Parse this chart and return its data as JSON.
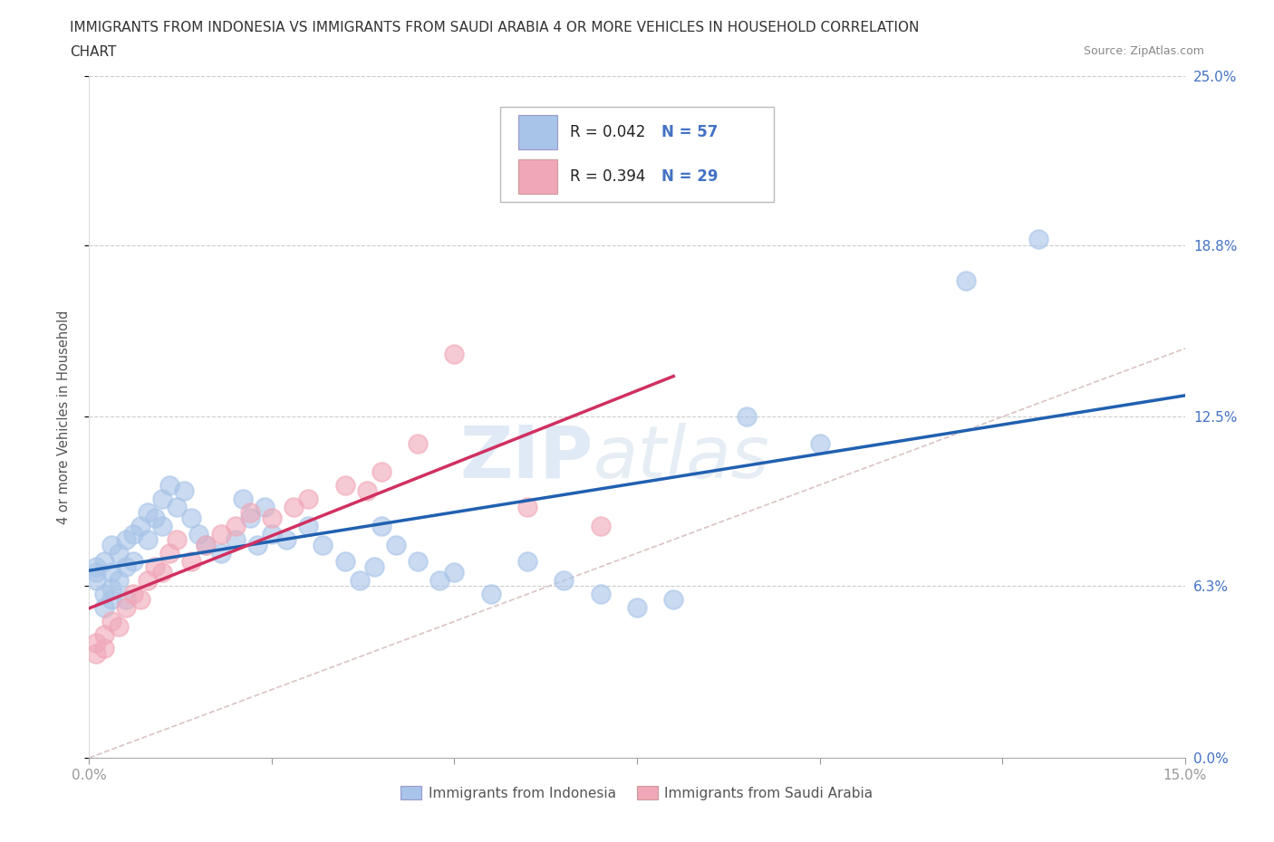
{
  "title_line1": "IMMIGRANTS FROM INDONESIA VS IMMIGRANTS FROM SAUDI ARABIA 4 OR MORE VEHICLES IN HOUSEHOLD CORRELATION",
  "title_line2": "CHART",
  "source": "Source: ZipAtlas.com",
  "ylabel": "4 or more Vehicles in Household",
  "xlim": [
    0.0,
    0.15
  ],
  "ylim": [
    0.0,
    0.25
  ],
  "ytick_positions": [
    0.0,
    0.063,
    0.125,
    0.188,
    0.25
  ],
  "ytick_labels_right": [
    "0.0%",
    "6.3%",
    "12.5%",
    "18.8%",
    "25.0%"
  ],
  "R_indonesia": 0.042,
  "N_indonesia": 57,
  "R_saudi": 0.394,
  "N_saudi": 29,
  "color_indonesia": "#a8c4e8",
  "color_saudi": "#f0a8b8",
  "line_color_indonesia": "#2060b0",
  "line_color_saudi": "#d03060",
  "background_color": "#ffffff",
  "indo_x": [
    0.001,
    0.001,
    0.001,
    0.002,
    0.002,
    0.002,
    0.003,
    0.003,
    0.003,
    0.003,
    0.004,
    0.004,
    0.005,
    0.005,
    0.005,
    0.006,
    0.006,
    0.007,
    0.008,
    0.008,
    0.009,
    0.01,
    0.01,
    0.011,
    0.012,
    0.013,
    0.014,
    0.015,
    0.016,
    0.018,
    0.02,
    0.021,
    0.022,
    0.023,
    0.024,
    0.025,
    0.027,
    0.03,
    0.032,
    0.035,
    0.037,
    0.039,
    0.04,
    0.042,
    0.045,
    0.048,
    0.05,
    0.055,
    0.06,
    0.065,
    0.07,
    0.075,
    0.08,
    0.09,
    0.1,
    0.12,
    0.13
  ],
  "indo_y": [
    0.07,
    0.068,
    0.065,
    0.072,
    0.06,
    0.055,
    0.078,
    0.068,
    0.062,
    0.058,
    0.075,
    0.065,
    0.08,
    0.07,
    0.058,
    0.082,
    0.072,
    0.085,
    0.09,
    0.08,
    0.088,
    0.095,
    0.085,
    0.1,
    0.092,
    0.098,
    0.088,
    0.082,
    0.078,
    0.075,
    0.08,
    0.095,
    0.088,
    0.078,
    0.092,
    0.082,
    0.08,
    0.085,
    0.078,
    0.072,
    0.065,
    0.07,
    0.085,
    0.078,
    0.072,
    0.065,
    0.068,
    0.06,
    0.072,
    0.065,
    0.06,
    0.055,
    0.058,
    0.125,
    0.115,
    0.175,
    0.19
  ],
  "saudi_x": [
    0.001,
    0.001,
    0.002,
    0.002,
    0.003,
    0.004,
    0.005,
    0.006,
    0.007,
    0.008,
    0.009,
    0.01,
    0.011,
    0.012,
    0.014,
    0.016,
    0.018,
    0.02,
    0.022,
    0.025,
    0.028,
    0.03,
    0.035,
    0.038,
    0.04,
    0.045,
    0.05,
    0.06,
    0.07
  ],
  "saudi_y": [
    0.038,
    0.042,
    0.045,
    0.04,
    0.05,
    0.048,
    0.055,
    0.06,
    0.058,
    0.065,
    0.07,
    0.068,
    0.075,
    0.08,
    0.072,
    0.078,
    0.082,
    0.085,
    0.09,
    0.088,
    0.092,
    0.095,
    0.1,
    0.098,
    0.105,
    0.115,
    0.148,
    0.092,
    0.085
  ]
}
